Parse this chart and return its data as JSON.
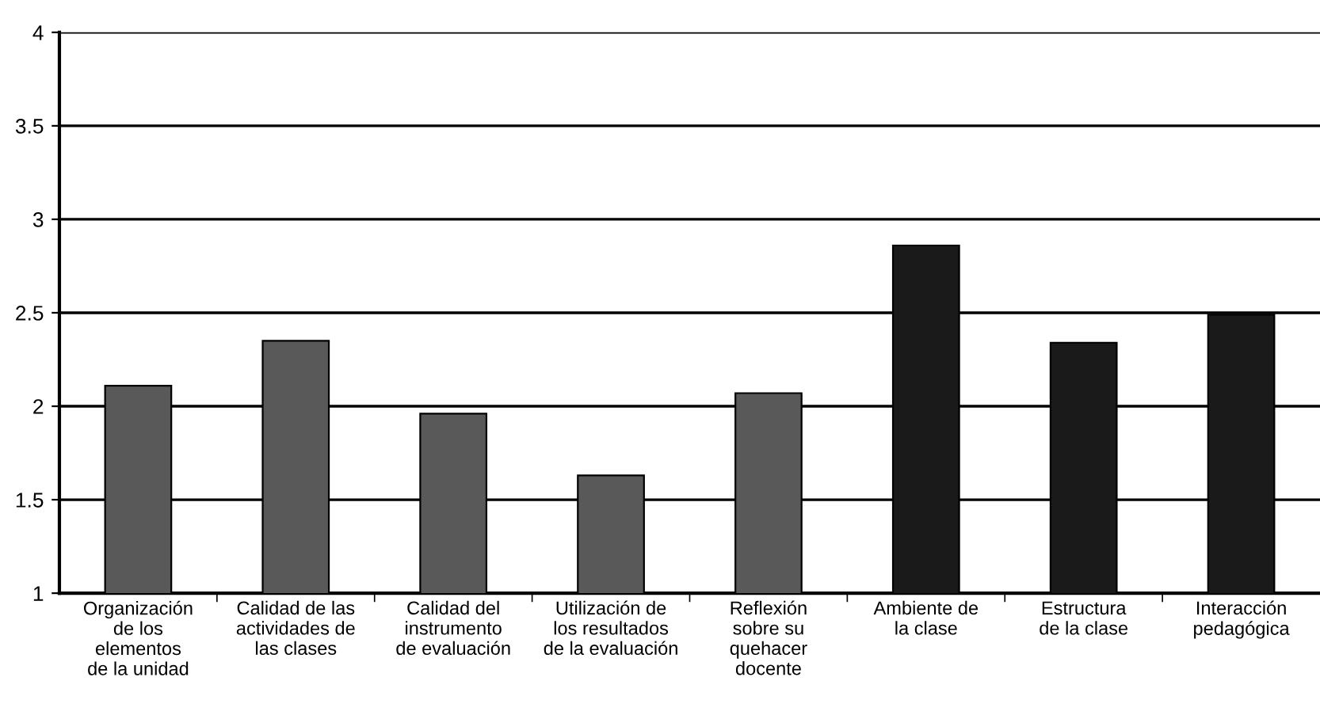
{
  "chart_data": {
    "type": "bar",
    "categories": [
      "Organización\nde los\nelementos\nde la unidad",
      "Calidad de las\nactividades de\nlas clases",
      "Calidad del\ninstrumento\nde evaluación",
      "Utilización de\nlos resultados\nde la evaluación",
      "Reflexión\nsobre su\nquehacer\ndocente",
      "Ambiente de\nla clase",
      "Estructura\nde la clase",
      "Interacción\npedagógica"
    ],
    "values": [
      2.11,
      2.35,
      1.96,
      1.63,
      2.07,
      2.86,
      2.34,
      2.49
    ],
    "colors": [
      "#595959",
      "#595959",
      "#595959",
      "#595959",
      "#595959",
      "#1a1a1a",
      "#1a1a1a",
      "#1a1a1a"
    ],
    "ylim": [
      1,
      4
    ],
    "yticks": [
      1,
      1.5,
      2,
      2.5,
      3,
      3.5,
      4
    ],
    "grid": "y",
    "legend": false
  }
}
